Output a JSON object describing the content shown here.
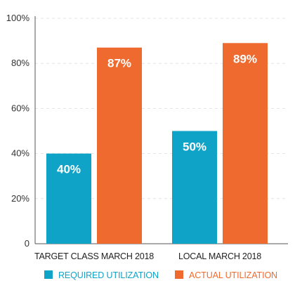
{
  "chart_data": {
    "type": "bar",
    "categories": [
      "TARGET CLASS MARCH 2018",
      "LOCAL MARCH 2018"
    ],
    "series": [
      {
        "name": "REQUIRED UTILIZATION",
        "values": [
          40,
          50
        ],
        "color": "#0fa3c8"
      },
      {
        "name": "ACTUAL UTILIZATION",
        "values": [
          87,
          89
        ],
        "color": "#ee6a2e"
      }
    ],
    "data_labels": [
      [
        "40%",
        "50%"
      ],
      [
        "87%",
        "89%"
      ]
    ],
    "yticks": [
      "0",
      "20%",
      "40%",
      "60%",
      "80%",
      "100%"
    ],
    "ytick_values": [
      0,
      20,
      40,
      60,
      80,
      100
    ],
    "ylim": [
      0,
      100
    ],
    "grid": true,
    "legend_position": "bottom"
  }
}
